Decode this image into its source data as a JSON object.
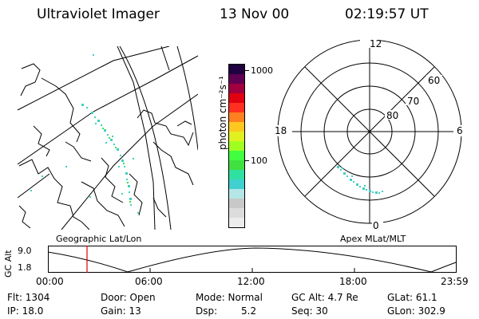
{
  "header": {
    "instrument": "Ultraviolet Imager",
    "date": "13 Nov 00",
    "time": "02:19:57 UT"
  },
  "map": {
    "left_label": "Geographic Lat/Lon",
    "right_label": "Apex MLat/MLT"
  },
  "colorbar": {
    "unit_label": "photon cm⁻²s⁻¹",
    "ticks": [
      "1000",
      "100"
    ],
    "colors": [
      "#ececec",
      "#dcdcdc",
      "#c8c8c8",
      "#b4e6e6",
      "#40d0d0",
      "#30e0a0",
      "#40e040",
      "#40ff40",
      "#a0ff20",
      "#e0f020",
      "#ffc820",
      "#ff8020",
      "#ff3020",
      "#e00010",
      "#a00040",
      "#600050",
      "#200040"
    ]
  },
  "polar": {
    "lat_labels": [
      "60",
      "70",
      "80"
    ],
    "mlt_labels": {
      "top": "12",
      "bottom": "0",
      "left": "18",
      "right": "6"
    }
  },
  "altitude_plot": {
    "axis_label": "GC Alt",
    "y_ticks": [
      "9.0",
      "1.8"
    ],
    "x_ticks": [
      "00:00",
      "06:00",
      "12:00",
      "18:00",
      "23:59"
    ],
    "current_time_color": "#e00000"
  },
  "info": {
    "flt": "Flt: 1304",
    "ip": "IP: 18.0",
    "door": "Door: Open",
    "gain": "Gain: 13",
    "mode": "Mode: Normal",
    "dsp_label": "Dsp:",
    "dsp_value": "5.2",
    "gc_alt": "GC Alt: 4.7 Re",
    "seq": "Seq: 30",
    "glat": "GLat:  61.1",
    "glon": "GLon: 302.9"
  }
}
